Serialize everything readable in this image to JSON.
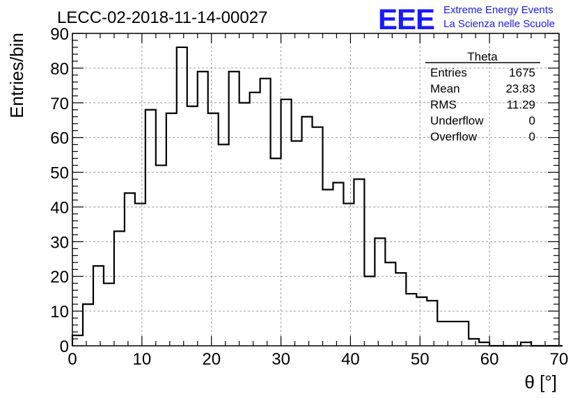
{
  "chart_data": {
    "type": "bar",
    "title": "LECC-02-2018-11-14-00027",
    "xlabel": "θ [°]",
    "ylabel": "Entries/bin",
    "xlim": [
      0,
      70
    ],
    "ylim": [
      0,
      90
    ],
    "x_ticks": [
      0,
      10,
      20,
      30,
      40,
      50,
      60,
      70
    ],
    "y_ticks": [
      0,
      10,
      20,
      30,
      40,
      50,
      60,
      70,
      80,
      90
    ],
    "grid": true,
    "bin_width": 1.5,
    "bin_start": 0,
    "values": [
      3,
      12,
      23,
      18,
      33,
      44,
      41,
      68,
      52,
      67,
      86,
      69,
      79,
      67,
      58,
      79,
      70,
      73,
      77,
      54,
      71,
      59,
      66,
      63,
      45,
      47,
      41,
      48,
      20,
      31,
      24,
      21,
      15,
      14,
      13,
      7,
      7,
      7,
      2,
      1,
      0,
      0,
      0,
      1,
      0,
      0,
      0
    ],
    "stats_box": {
      "title": "Theta",
      "rows": [
        {
          "label": "Entries",
          "value": "1675"
        },
        {
          "label": "Mean",
          "value": "23.83"
        },
        {
          "label": "RMS",
          "value": "11.29"
        },
        {
          "label": "Underflow",
          "value": "0"
        },
        {
          "label": "Overflow",
          "value": "0"
        }
      ]
    }
  },
  "logo": {
    "mark": "EEE",
    "line1": "Extreme Energy Events",
    "line2": "La Scienza nelle Scuole",
    "color": "#1a1aff"
  }
}
